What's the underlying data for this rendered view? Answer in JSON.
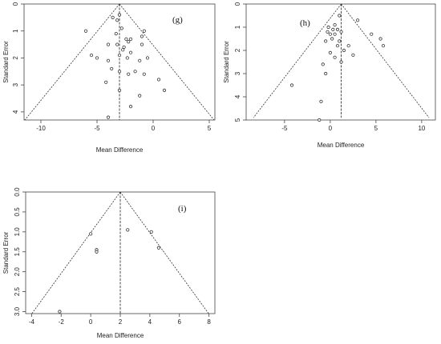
{
  "chart_data": [
    {
      "type": "scatter",
      "panel_label": "(g)",
      "xlabel": "Mean Difference",
      "ylabel": "Standard Error",
      "xlim": [
        -11.5,
        5.5
      ],
      "ylim": [
        0,
        4.3
      ],
      "y_reversed": true,
      "x_ticks": [
        -10,
        -5,
        0,
        5
      ],
      "x_tick_labels": [
        "-10",
        "-5",
        "0",
        "5"
      ],
      "y_ticks": [
        0,
        1,
        2,
        3,
        4
      ],
      "y_tick_labels": [
        "0",
        "1",
        "2",
        "3",
        "4"
      ],
      "pooled_estimate": -3.0,
      "funnel_base_se": 4.3,
      "points": [
        [
          -3.0,
          0.4
        ],
        [
          -3.2,
          0.6
        ],
        [
          -3.6,
          0.5
        ],
        [
          -2.8,
          0.9
        ],
        [
          -3.3,
          1.1
        ],
        [
          -6.0,
          1.0
        ],
        [
          -2.4,
          1.3
        ],
        [
          -2.0,
          1.3
        ],
        [
          -2.2,
          1.4
        ],
        [
          -0.8,
          1.0
        ],
        [
          -1.0,
          1.2
        ],
        [
          -4.0,
          1.5
        ],
        [
          -3.2,
          1.5
        ],
        [
          -2.6,
          1.6
        ],
        [
          -1.0,
          1.5
        ],
        [
          -5.5,
          1.9
        ],
        [
          -5.0,
          2.0
        ],
        [
          -2.7,
          1.7
        ],
        [
          -2.0,
          1.8
        ],
        [
          -3.0,
          1.9
        ],
        [
          -4.0,
          2.1
        ],
        [
          -2.3,
          2.0
        ],
        [
          -1.2,
          2.1
        ],
        [
          -0.5,
          2.0
        ],
        [
          -3.7,
          2.4
        ],
        [
          -3.0,
          2.5
        ],
        [
          -2.2,
          2.6
        ],
        [
          -1.6,
          2.5
        ],
        [
          -0.8,
          2.6
        ],
        [
          0.5,
          2.8
        ],
        [
          -4.2,
          2.9
        ],
        [
          -3.0,
          3.2
        ],
        [
          1.0,
          3.2
        ],
        [
          -1.2,
          3.4
        ],
        [
          -2.0,
          3.8
        ],
        [
          -4.0,
          4.2
        ]
      ]
    },
    {
      "type": "scatter",
      "panel_label": "(h)",
      "xlabel": "Mean Difference",
      "ylabel": "Standard Error",
      "xlim": [
        -9.2,
        11.5
      ],
      "ylim": [
        0,
        5.0
      ],
      "y_reversed": true,
      "x_ticks": [
        -5,
        0,
        5,
        10
      ],
      "x_tick_labels": [
        "-5",
        "0",
        "5",
        "10"
      ],
      "y_ticks": [
        0,
        1,
        2,
        3,
        4,
        5
      ],
      "y_tick_labels": [
        "0",
        "1",
        "2",
        "3",
        "4",
        "5"
      ],
      "pooled_estimate": 1.2,
      "funnel_base_se": 4.9,
      "points": [
        [
          1.0,
          0.5
        ],
        [
          3.0,
          0.7
        ],
        [
          0.5,
          0.9
        ],
        [
          -0.2,
          1.0
        ],
        [
          0.3,
          1.1
        ],
        [
          0.8,
          1.1
        ],
        [
          -0.3,
          1.2
        ],
        [
          0.0,
          1.3
        ],
        [
          0.5,
          1.3
        ],
        [
          1.2,
          1.2
        ],
        [
          4.5,
          1.3
        ],
        [
          5.5,
          1.5
        ],
        [
          0.2,
          1.5
        ],
        [
          1.0,
          1.6
        ],
        [
          -0.5,
          1.6
        ],
        [
          2.0,
          1.8
        ],
        [
          0.8,
          1.8
        ],
        [
          5.8,
          1.8
        ],
        [
          1.5,
          2.0
        ],
        [
          0.0,
          2.1
        ],
        [
          2.5,
          2.2
        ],
        [
          0.5,
          2.3
        ],
        [
          1.2,
          2.5
        ],
        [
          -0.8,
          2.6
        ],
        [
          -0.5,
          3.0
        ],
        [
          -4.2,
          3.5
        ],
        [
          -1.0,
          4.2
        ],
        [
          -1.2,
          5.0
        ]
      ]
    },
    {
      "type": "scatter",
      "panel_label": "(i)",
      "xlabel": "Mean Difference",
      "ylabel": "Standard Error",
      "xlim": [
        -4.4,
        8.4
      ],
      "ylim": [
        0,
        3.05
      ],
      "y_reversed": true,
      "x_ticks": [
        -4,
        -2,
        0,
        2,
        4,
        6,
        8
      ],
      "x_tick_labels": [
        "-4",
        "-2",
        "0",
        "2",
        "4",
        "6",
        "8"
      ],
      "y_ticks": [
        0.0,
        0.5,
        1.0,
        1.5,
        2.0,
        2.5,
        3.0
      ],
      "y_tick_labels": [
        "0.0",
        "0.5",
        "1.0",
        "1.5",
        "2.0",
        "2.5",
        "3.0"
      ],
      "pooled_estimate": 2.0,
      "funnel_base_se": 3.05,
      "points": [
        [
          0.0,
          1.05
        ],
        [
          0.4,
          1.45
        ],
        [
          0.4,
          1.5
        ],
        [
          2.5,
          0.95
        ],
        [
          4.1,
          1.0
        ],
        [
          4.6,
          1.4
        ],
        [
          -2.1,
          3.0
        ]
      ]
    }
  ]
}
